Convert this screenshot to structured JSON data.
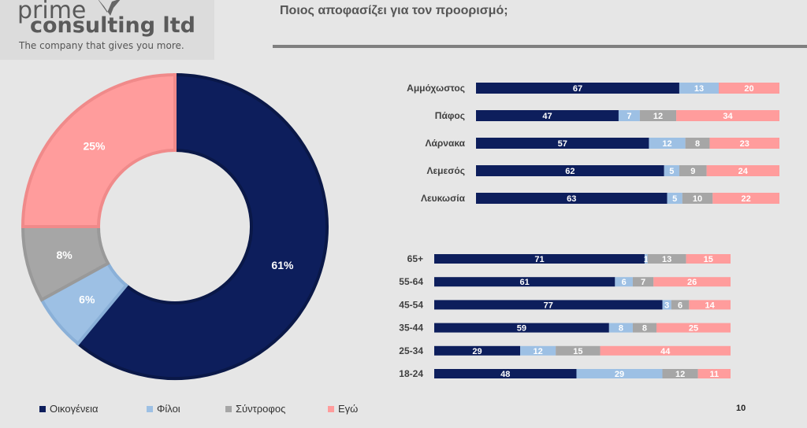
{
  "logo": {
    "line1": "prime",
    "line2": "consulting ltd",
    "tagline": "The company that gives you more."
  },
  "title": "Ποιος αποφασίζει για τον προορισμό;",
  "page_number": "10",
  "colors": {
    "family": "#0d1e5c",
    "friends": "#9dc0e4",
    "partner": "#a6a6a6",
    "self": "#ff9c9c"
  },
  "legend": [
    {
      "label": "Οικογένεια",
      "color": "#0d1e5c"
    },
    {
      "label": "Φίλοι",
      "color": "#9dc0e4"
    },
    {
      "label": "Σύντροφος",
      "color": "#a6a6a6"
    },
    {
      "label": "Εγώ",
      "color": "#ff9c9c"
    }
  ],
  "chart_data": [
    {
      "type": "pie",
      "donut": true,
      "series": [
        {
          "name": "Οικογένεια",
          "value": 61,
          "label": "61%"
        },
        {
          "name": "Φίλοι",
          "value": 6,
          "label": "6%"
        },
        {
          "name": "Σύντροφος",
          "value": 8,
          "label": "8%"
        },
        {
          "name": "Εγώ",
          "value": 25,
          "label": "25%"
        }
      ]
    },
    {
      "type": "bar",
      "orientation": "horizontal",
      "stacked": true,
      "categories": [
        "Αμμόχωστος",
        "Πάφος",
        "Λάρνακα",
        "Λεμεσός",
        "Λευκωσία"
      ],
      "series": [
        {
          "name": "Οικογένεια",
          "values": [
            67,
            47,
            57,
            62,
            63
          ]
        },
        {
          "name": "Φίλοι",
          "values": [
            13,
            7,
            12,
            5,
            5
          ]
        },
        {
          "name": "Σύντροφος",
          "values": [
            0,
            12,
            8,
            9,
            10
          ]
        },
        {
          "name": "Εγώ",
          "values": [
            20,
            34,
            23,
            24,
            22
          ]
        }
      ]
    },
    {
      "type": "bar",
      "orientation": "horizontal",
      "stacked": true,
      "categories": [
        "65+",
        "55-64",
        "45-54",
        "35-44",
        "25-34",
        "18-24"
      ],
      "series": [
        {
          "name": "Οικογένεια",
          "values": [
            71,
            61,
            77,
            59,
            29,
            48
          ]
        },
        {
          "name": "Φίλοι",
          "values": [
            1,
            6,
            3,
            8,
            12,
            29
          ]
        },
        {
          "name": "Σύντροφος",
          "values": [
            13,
            7,
            6,
            8,
            15,
            12
          ]
        },
        {
          "name": "Εγώ",
          "values": [
            15,
            26,
            14,
            25,
            44,
            11
          ]
        }
      ]
    }
  ]
}
